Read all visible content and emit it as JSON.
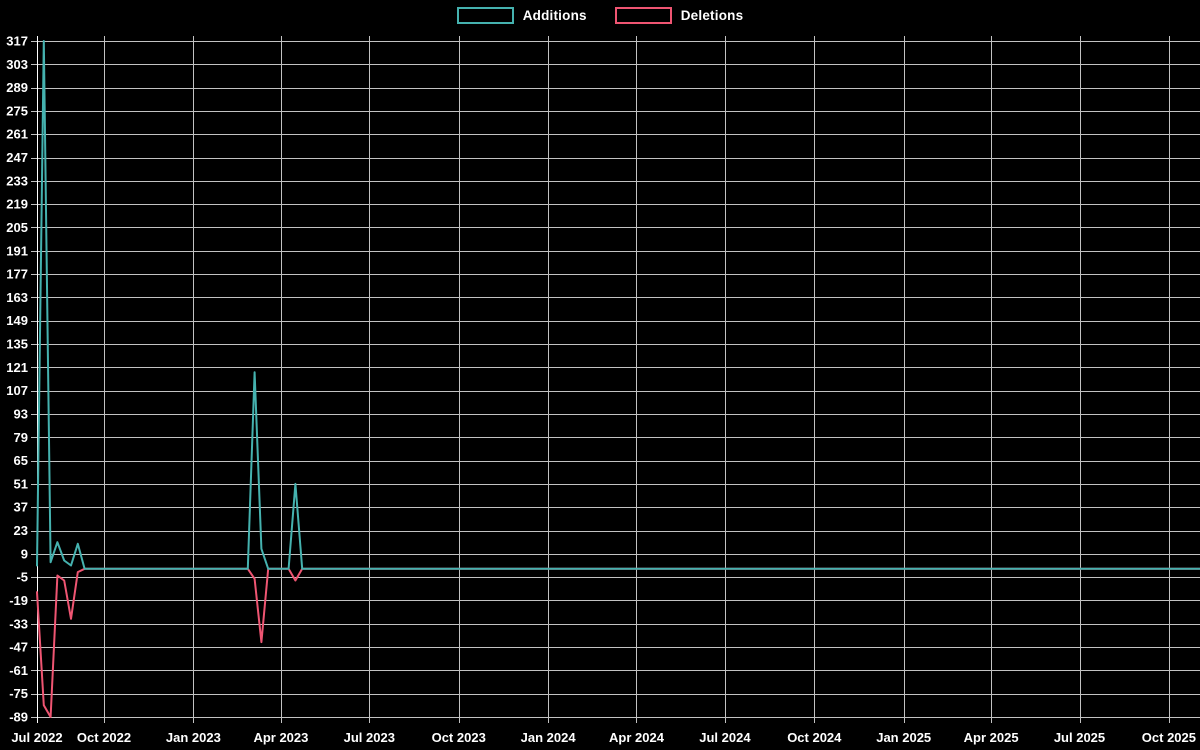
{
  "page": {
    "background": "#000000"
  },
  "legend": {
    "position": "top-center",
    "items": [
      {
        "label": "Additions",
        "color": "#45b2af"
      },
      {
        "label": "Deletions",
        "color": "#ef5572"
      }
    ]
  },
  "chart_data": {
    "type": "line",
    "title": "",
    "xlabel": "",
    "ylabel": "",
    "frequency": "weekly",
    "grid": true,
    "background_color": "#000000",
    "grid_color": "#d8d8d8",
    "axis_color": "#ffffff",
    "text_color": "#ffffff",
    "x_axis": {
      "start": "2022-07-24",
      "end": "2025-11-02",
      "ticks": [
        {
          "label": "Jul 2022",
          "date": "2022-07-24"
        },
        {
          "label": "Oct 2022",
          "date": "2022-10-01"
        },
        {
          "label": "Jan 2023",
          "date": "2023-01-01"
        },
        {
          "label": "Apr 2023",
          "date": "2023-04-01"
        },
        {
          "label": "Jul 2023",
          "date": "2023-07-01"
        },
        {
          "label": "Oct 2023",
          "date": "2023-10-01"
        },
        {
          "label": "Jan 2024",
          "date": "2024-01-01"
        },
        {
          "label": "Apr 2024",
          "date": "2024-04-01"
        },
        {
          "label": "Jul 2024",
          "date": "2024-07-01"
        },
        {
          "label": "Oct 2024",
          "date": "2024-10-01"
        },
        {
          "label": "Jan 2025",
          "date": "2025-01-01"
        },
        {
          "label": "Apr 2025",
          "date": "2025-04-01"
        },
        {
          "label": "Jul 2025",
          "date": "2025-07-01"
        },
        {
          "label": "Oct 2025",
          "date": "2025-10-01"
        }
      ]
    },
    "y_axis": {
      "min": -89,
      "max": 317,
      "step": 14,
      "ticks": [
        317,
        303,
        289,
        275,
        261,
        247,
        233,
        219,
        205,
        191,
        177,
        163,
        149,
        135,
        121,
        107,
        93,
        79,
        65,
        51,
        37,
        23,
        9,
        -5,
        -19,
        -33,
        -47,
        -61,
        -75,
        -89
      ]
    },
    "series": [
      {
        "name": "Additions",
        "color": "#45b2af",
        "all_other_weeks": 0,
        "nonzero_points": [
          [
            "2022-07-24",
            2
          ],
          [
            "2022-07-31",
            317
          ],
          [
            "2022-08-07",
            4
          ],
          [
            "2022-08-14",
            16
          ],
          [
            "2022-08-21",
            5
          ],
          [
            "2022-08-28",
            2
          ],
          [
            "2022-09-04",
            15
          ],
          [
            "2023-03-05",
            118
          ],
          [
            "2023-03-12",
            12
          ],
          [
            "2023-04-16",
            51
          ]
        ]
      },
      {
        "name": "Deletions",
        "color": "#ef5572",
        "all_other_weeks": 0,
        "nonzero_points": [
          [
            "2022-07-24",
            -14
          ],
          [
            "2022-07-31",
            -82
          ],
          [
            "2022-08-07",
            -89
          ],
          [
            "2022-08-14",
            -4
          ],
          [
            "2022-08-21",
            -7
          ],
          [
            "2022-08-28",
            -30
          ],
          [
            "2022-09-04",
            -2
          ],
          [
            "2023-03-05",
            -6
          ],
          [
            "2023-03-12",
            -44
          ],
          [
            "2023-04-16",
            -7
          ]
        ]
      }
    ]
  }
}
